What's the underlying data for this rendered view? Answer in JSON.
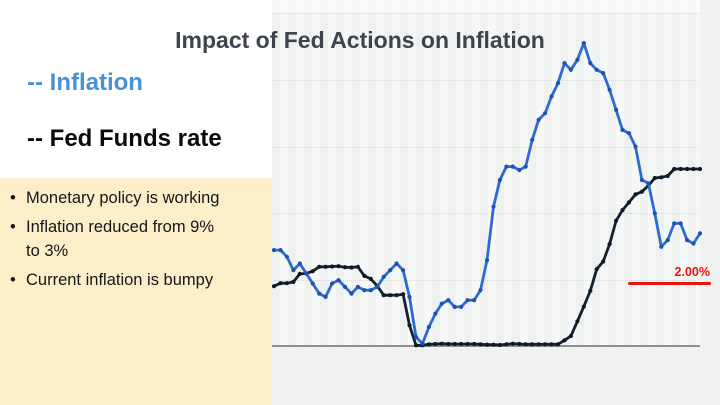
{
  "slide": {
    "title": "Impact of Fed Actions on Inflation",
    "legend": [
      {
        "label": "-- Inflation",
        "color": "#4a90d8"
      },
      {
        "label": "-- Fed Funds rate",
        "color": "#0b0b0b"
      }
    ],
    "notes": [
      "Monetary policy is working",
      "Inflation reduced from 9%\nto 3%",
      "Current inflation is bumpy"
    ]
  },
  "chart_data": {
    "type": "line",
    "title": "Impact of Fed Actions on Inflation",
    "xlabel": "",
    "ylabel": "",
    "ylim": [
      0,
      10
    ],
    "gridline_step": 2,
    "grid": "horizontal-dotted",
    "legend_position": "top-left-outside",
    "x_note": "monthly points, no visible x-axis tick labels",
    "reference_line": {
      "value": 2.0,
      "label": "2.00%",
      "color": "#e71410"
    },
    "series": [
      {
        "name": "Fed Funds rate",
        "color": "#132030",
        "dot_color": "#0d1925",
        "values": [
          1.82,
          1.91,
          1.91,
          1.95,
          2.19,
          2.2,
          2.27,
          2.4,
          2.4,
          2.41,
          2.42,
          2.39,
          2.38,
          2.4,
          2.13,
          2.04,
          1.83,
          1.55,
          1.55,
          1.55,
          1.58,
          0.65,
          0.05,
          0.05,
          0.08,
          0.09,
          0.1,
          0.09,
          0.09,
          0.09,
          0.09,
          0.09,
          0.08,
          0.07,
          0.07,
          0.06,
          0.08,
          0.1,
          0.09,
          0.08,
          0.08,
          0.08,
          0.08,
          0.08,
          0.08,
          0.2,
          0.33,
          0.77,
          1.21,
          1.68,
          2.33,
          2.56,
          3.08,
          3.78,
          4.1,
          4.33,
          4.57,
          4.65,
          4.83,
          5.06,
          5.08,
          5.12,
          5.33,
          5.33,
          5.33,
          5.33,
          5.33
        ]
      },
      {
        "name": "Inflation",
        "color": "#2c6cd1",
        "dot_color": "#1d53ae",
        "values": [
          2.9,
          2.9,
          2.7,
          2.3,
          2.5,
          2.2,
          1.9,
          1.6,
          1.5,
          1.9,
          2.0,
          1.8,
          1.6,
          1.8,
          1.7,
          1.7,
          1.8,
          2.1,
          2.3,
          2.5,
          2.3,
          1.5,
          0.3,
          0.1,
          0.6,
          1.0,
          1.3,
          1.4,
          1.2,
          1.2,
          1.4,
          1.4,
          1.7,
          2.6,
          4.2,
          5.0,
          5.4,
          5.4,
          5.3,
          5.4,
          6.2,
          6.8,
          7.0,
          7.5,
          7.9,
          8.5,
          8.3,
          8.6,
          9.1,
          8.5,
          8.3,
          8.2,
          7.7,
          7.1,
          6.5,
          6.4,
          6.0,
          5.0,
          4.9,
          4.0,
          3.0,
          3.2,
          3.7,
          3.7,
          3.2,
          3.1,
          3.4
        ]
      }
    ]
  }
}
